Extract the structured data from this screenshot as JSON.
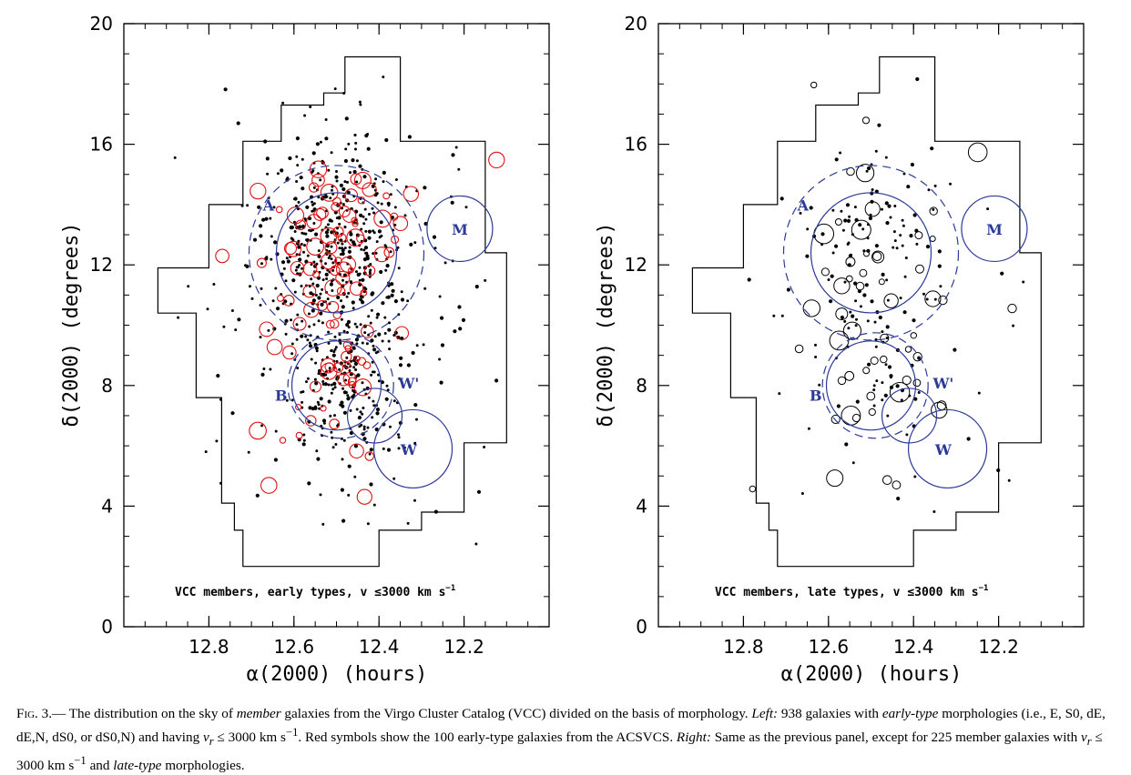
{
  "chart_data": [
    {
      "type": "scatter",
      "panel": "left",
      "xlabel": "α(2000) (hours)",
      "ylabel": "δ(2000) (degrees)",
      "xlim": [
        13.0,
        12.0
      ],
      "ylim": [
        0,
        20
      ],
      "xticks": [
        "12.8",
        "12.6",
        "12.4",
        "12.2"
      ],
      "yticks": [
        "0",
        "4",
        "8",
        "12",
        "16",
        "20"
      ],
      "annotation": "VCC members, early types, v ≤3000 km s",
      "annotation_sup": "−1",
      "series_colors": {
        "vcc": "#000000",
        "acsvcs": "#e01010",
        "regions": "#2b3a97"
      }
    },
    {
      "type": "scatter",
      "panel": "right",
      "xlabel": "α(2000) (hours)",
      "ylabel": "δ(2000) (degrees)",
      "xlim": [
        13.0,
        12.0
      ],
      "ylim": [
        0,
        20
      ],
      "xticks": [
        "12.8",
        "12.6",
        "12.4",
        "12.2"
      ],
      "yticks": [
        "0",
        "4",
        "8",
        "12",
        "16",
        "20"
      ],
      "annotation": "VCC members, late types, v ≤3000 km s",
      "annotation_sup": "−1",
      "series_colors": {
        "vcc": "#000000",
        "regions": "#2b3a97"
      }
    }
  ],
  "regions": [
    {
      "name": "A",
      "x": 12.5,
      "y": 12.4
    },
    {
      "name": "B",
      "x": 12.5,
      "y": 8.0
    },
    {
      "name": "W'",
      "x": 12.4,
      "y": 7.0
    },
    {
      "name": "W",
      "x": 12.32,
      "y": 5.9
    },
    {
      "name": "M",
      "x": 12.21,
      "y": 13.2
    }
  ],
  "caption": {
    "fig": "Fig. 3.",
    "t1": "— The distribution on the sky of ",
    "i1": "member",
    "t2": " galaxies from the Virgo Cluster Catalog (VCC) divided on the basis of morphology. ",
    "i2": "Left:",
    "t3": " 938 galaxies with ",
    "i3": "early-type",
    "t4": " morphologies (i.e., E, S0, dE, dE,N, dS0, or dS0,N) and having ",
    "t5": " ≤ 3000 km s",
    "t6": ". Red symbols show the 100 early-type galaxies from the ACSVCS. ",
    "i4": "Right:",
    "t7": " Same as the previous panel, except for 225 member galaxies with ",
    "t8": " ≤ 3000 km s",
    "t9": " and ",
    "i5": "late-type",
    "t10": " morphologies.",
    "sup": "−1",
    "vr": "v",
    "vr_sub": "r"
  }
}
